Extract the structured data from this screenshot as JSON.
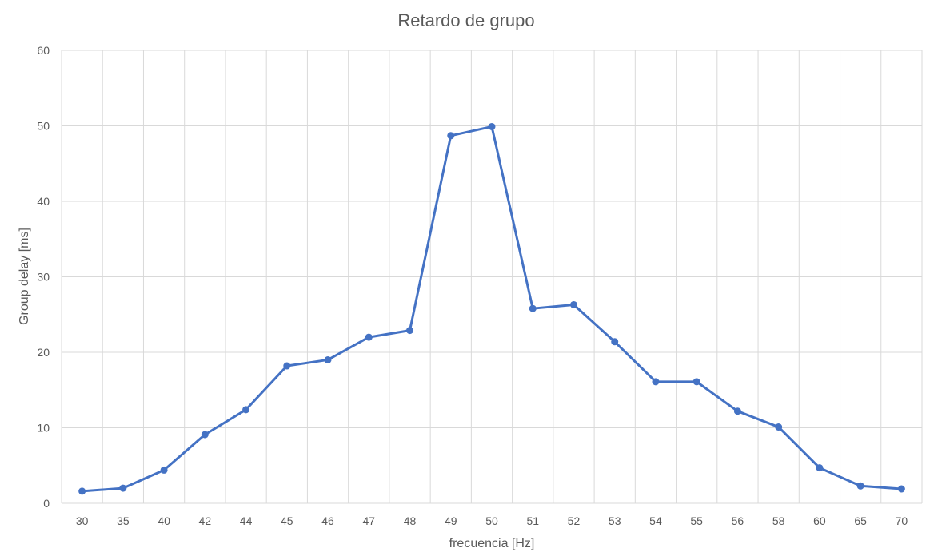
{
  "chart_data": {
    "type": "line",
    "title": "Retardo de grupo",
    "xlabel": "frecuencia [Hz]",
    "ylabel": "Group delay [ms]",
    "categories": [
      "30",
      "35",
      "40",
      "42",
      "44",
      "45",
      "46",
      "47",
      "48",
      "49",
      "50",
      "51",
      "52",
      "53",
      "54",
      "55",
      "56",
      "58",
      "60",
      "65",
      "70"
    ],
    "series": [
      {
        "name": "",
        "color": "#4472C4",
        "values": [
          1.6,
          2.0,
          4.4,
          9.1,
          12.4,
          18.2,
          19.0,
          22.0,
          22.9,
          48.7,
          49.9,
          25.8,
          26.3,
          21.4,
          16.1,
          16.1,
          12.2,
          10.1,
          4.7,
          2.3,
          1.9
        ]
      }
    ],
    "ylim": [
      0,
      60
    ],
    "yticks": [
      0,
      10,
      20,
      30,
      40,
      50,
      60
    ],
    "grid": true,
    "gridColor": "#D9D9D9",
    "legend": "none"
  }
}
